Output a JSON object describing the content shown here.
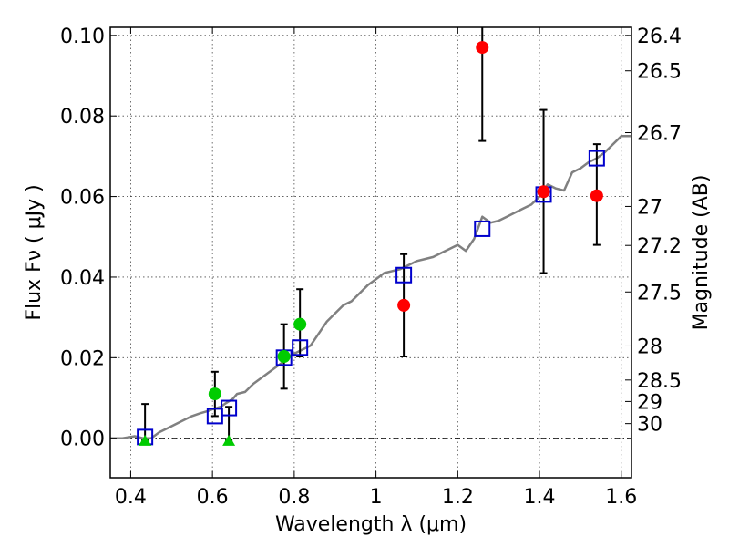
{
  "chart_data": {
    "type": "scatter",
    "xlabel": "Wavelength  λ (μm)",
    "ylabel": "Flux  Fν  ( μJy )",
    "ylabel_right": "Magnitude (AB)",
    "xlim": [
      0.35,
      1.625
    ],
    "ylim": [
      -0.0098,
      0.102
    ],
    "x_ticks": [
      0.4,
      0.6,
      0.8,
      1.0,
      1.2,
      1.4,
      1.6
    ],
    "x_tick_labels": [
      "0.4",
      "0.6",
      "0.8",
      "1",
      "1.2",
      "1.4",
      "1.6"
    ],
    "y_ticks": [
      0.0,
      0.02,
      0.04,
      0.06,
      0.08,
      0.1
    ],
    "y_tick_labels": [
      "0.00",
      "0.02",
      "0.04",
      "0.06",
      "0.08",
      "0.10"
    ],
    "right_ticks": [
      {
        "label": "26.4",
        "mag": 26.4
      },
      {
        "label": "26.5",
        "mag": 26.5
      },
      {
        "label": "26.7",
        "mag": 26.7
      },
      {
        "label": "27",
        "mag": 27.0
      },
      {
        "label": "27.2",
        "mag": 27.2
      },
      {
        "label": "27.5",
        "mag": 27.5
      },
      {
        "label": "28",
        "mag": 28.0
      },
      {
        "label": "28.5",
        "mag": 28.5
      },
      {
        "label": "29",
        "mag": 29.0
      },
      {
        "label": "30",
        "mag": 30.0
      }
    ],
    "grid": true,
    "model_spectrum": {
      "color": "#808080",
      "x": [
        0.35,
        0.38,
        0.41,
        0.43,
        0.45,
        0.47,
        0.49,
        0.51,
        0.53,
        0.55,
        0.57,
        0.59,
        0.6,
        0.62,
        0.63,
        0.65,
        0.66,
        0.68,
        0.7,
        0.72,
        0.74,
        0.76,
        0.78,
        0.8,
        0.82,
        0.84,
        0.86,
        0.88,
        0.9,
        0.92,
        0.94,
        0.96,
        0.98,
        1.0,
        1.02,
        1.04,
        1.06,
        1.08,
        1.1,
        1.12,
        1.14,
        1.16,
        1.18,
        1.2,
        1.22,
        1.24,
        1.26,
        1.28,
        1.3,
        1.32,
        1.34,
        1.36,
        1.38,
        1.4,
        1.42,
        1.44,
        1.46,
        1.48,
        1.5,
        1.52,
        1.54,
        1.56,
        1.58,
        1.6,
        1.625
      ],
      "y": [
        0.0,
        0.0,
        0.0005,
        0.0,
        0.0,
        0.0015,
        0.0025,
        0.0035,
        0.0045,
        0.0055,
        0.0062,
        0.0068,
        0.0072,
        0.0078,
        0.0085,
        0.0098,
        0.011,
        0.0115,
        0.0135,
        0.015,
        0.0165,
        0.018,
        0.0195,
        0.021,
        0.022,
        0.023,
        0.026,
        0.029,
        0.031,
        0.033,
        0.034,
        0.036,
        0.038,
        0.0395,
        0.041,
        0.0415,
        0.042,
        0.043,
        0.044,
        0.0445,
        0.045,
        0.046,
        0.047,
        0.048,
        0.0465,
        0.0495,
        0.055,
        0.0535,
        0.054,
        0.055,
        0.056,
        0.057,
        0.058,
        0.06,
        0.063,
        0.062,
        0.0615,
        0.066,
        0.067,
        0.0685,
        0.0695,
        0.071,
        0.073,
        0.075,
        0.075
      ]
    },
    "model_photometry": {
      "marker": "open-square",
      "color": "#0000cc",
      "x": [
        0.435,
        0.606,
        0.64,
        0.775,
        0.814,
        1.068,
        1.26,
        1.41,
        1.54
      ],
      "y": [
        0.0003,
        0.0055,
        0.0075,
        0.02,
        0.0225,
        0.0405,
        0.052,
        0.0605,
        0.0695
      ]
    },
    "series": [
      {
        "marker": "circle",
        "color": "#00cc00",
        "x": [
          0.606,
          0.775,
          0.814
        ],
        "y": [
          0.011,
          0.0203,
          0.0283
        ],
        "err_low": [
          0.0055,
          0.008,
          0.008
        ],
        "err_high": [
          0.0055,
          0.008,
          0.0087
        ]
      },
      {
        "marker": "triangle",
        "color": "#00cc00",
        "x": [
          0.435,
          0.64
        ],
        "y": [
          -0.0005,
          -0.0005
        ],
        "err_low": [
          0.0,
          0.0
        ],
        "err_high": [
          0.009,
          0.0083
        ]
      },
      {
        "marker": "circle",
        "color": "#ff0000",
        "x": [
          1.068,
          1.26,
          1.41,
          1.54
        ],
        "y": [
          0.033,
          0.097,
          0.0612,
          0.0602
        ],
        "err_low": [
          0.0127,
          0.0232,
          0.0202,
          0.0122
        ],
        "err_high": [
          0.0127,
          0.0068,
          0.0203,
          0.0128
        ]
      }
    ]
  }
}
